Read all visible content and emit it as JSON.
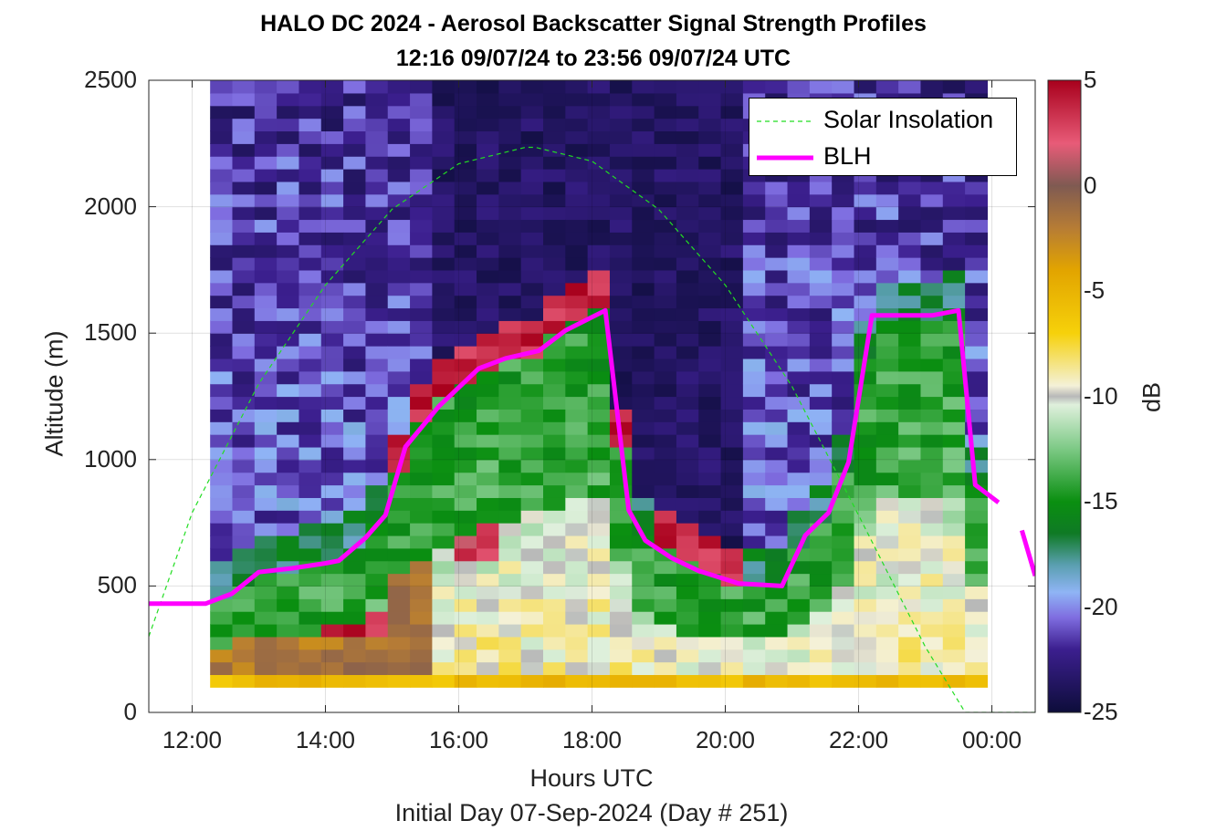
{
  "chart_data": {
    "type": "heatmap",
    "title": "HALO DC 2024 - Aerosol Backscatter Signal Strength Profiles",
    "subtitle": "12:16 09/07/24 to 23:56 09/07/24  UTC",
    "xlabel": "Hours UTC",
    "xlabel_secondary": "Initial Day 07-Sep-2024 (Day # 251)",
    "ylabel": "Altitude (m)",
    "colorbar_label": "dB",
    "xlim": [
      11.35,
      24.65
    ],
    "ylim": [
      0,
      2500
    ],
    "x_ticks": [
      "12:00",
      "14:00",
      "16:00",
      "18:00",
      "20:00",
      "22:00",
      "00:00"
    ],
    "y_ticks": [
      "0",
      "500",
      "1000",
      "1500",
      "2000",
      "2500"
    ],
    "colorbar_range": [
      -25,
      5
    ],
    "colorbar_ticks": [
      "5",
      "0",
      "-5",
      "-10",
      "-15",
      "-20",
      "-25"
    ],
    "colormap_stops": [
      {
        "db": -25,
        "color": "#0d0d3a"
      },
      {
        "db": -22,
        "color": "#3c1f8f"
      },
      {
        "db": -20.5,
        "color": "#7f6de0"
      },
      {
        "db": -19.3,
        "color": "#8fb4f5"
      },
      {
        "db": -18,
        "color": "#5a9fb0"
      },
      {
        "db": -16.5,
        "color": "#0f7a25"
      },
      {
        "db": -15,
        "color": "#0a8f10"
      },
      {
        "db": -12.5,
        "color": "#7cc985"
      },
      {
        "db": -10.4,
        "color": "#dff0dc"
      },
      {
        "db": -10,
        "color": "#b8b8b8"
      },
      {
        "db": -9.5,
        "color": "#f4f1d8"
      },
      {
        "db": -7,
        "color": "#f6d10a"
      },
      {
        "db": -4,
        "color": "#e2a400"
      },
      {
        "db": -2,
        "color": "#b67c35"
      },
      {
        "db": 0,
        "color": "#7f5a52"
      },
      {
        "db": 2,
        "color": "#e85b78"
      },
      {
        "db": 5,
        "color": "#a8001c"
      }
    ],
    "data_extent_hours": [
      12.27,
      23.93
    ],
    "data_extent_altitude": [
      100,
      2500
    ],
    "series": [
      {
        "name": "Solar Insolation",
        "color": "#22dd22",
        "style": "dashed",
        "x": [
          11.35,
          12.0,
          13.0,
          14.0,
          15.0,
          16.0,
          17.0,
          17.15,
          18.0,
          19.0,
          20.0,
          21.0,
          22.0,
          23.0,
          23.6,
          24.65
        ],
        "y": [
          300,
          790,
          1300,
          1690,
          1990,
          2170,
          2235,
          2235,
          2180,
          1990,
          1690,
          1290,
          780,
          260,
          0,
          0
        ]
      },
      {
        "name": "BLH",
        "color": "#ff00ff",
        "style": "solid",
        "x": [
          11.35,
          12.2,
          12.6,
          13.0,
          13.5,
          14.0,
          14.2,
          14.6,
          14.9,
          15.2,
          15.7,
          16.3,
          16.7,
          17.2,
          17.6,
          18.2,
          18.55,
          18.8,
          19.2,
          19.6,
          20.2,
          20.85,
          21.2,
          21.55,
          21.85,
          22.2,
          23.1,
          23.5,
          23.75,
          24.1
        ],
        "y": [
          430,
          430,
          470,
          555,
          570,
          590,
          600,
          690,
          780,
          1050,
          1210,
          1360,
          1400,
          1430,
          1510,
          1590,
          800,
          680,
          610,
          560,
          510,
          500,
          700,
          790,
          990,
          1570,
          1570,
          1590,
          900,
          830
        ],
        "extra_segments": [
          {
            "x": [
              24.45,
              24.65
            ],
            "y": [
              720,
              540
            ]
          }
        ]
      }
    ],
    "legend": {
      "placement": "top-right",
      "entries": [
        "Solar Insolation",
        "BLH"
      ]
    },
    "grid": true
  }
}
